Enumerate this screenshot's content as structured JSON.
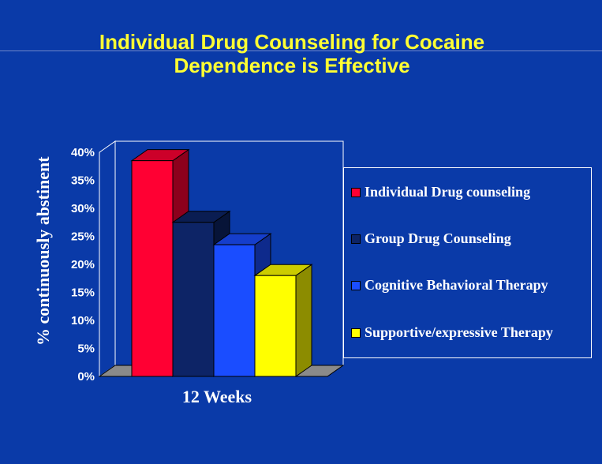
{
  "title": {
    "line1": "Individual Drug Counseling for Cocaine",
    "line2": "Dependence is Effective"
  },
  "colors": {
    "background": "#0a3aa8",
    "title": "#ffff33",
    "series": [
      "#ff0033",
      "#0d2466",
      "#1a4dff",
      "#ffff00"
    ]
  },
  "chart_data": {
    "type": "bar",
    "style": "3d",
    "categories": [
      "12  Weeks"
    ],
    "series": [
      {
        "name": "Individual Drug  counseling",
        "values": [
          38.5
        ]
      },
      {
        "name": "Group Drug Counseling",
        "values": [
          27.5
        ]
      },
      {
        "name": "Cognitive Behavioral Therapy",
        "values": [
          23.5
        ]
      },
      {
        "name": "Supportive/expressive Therapy",
        "values": [
          18
        ]
      }
    ],
    "ylabel": "% continuously abstinent",
    "xlabel": "",
    "ylim": [
      0,
      40
    ],
    "yticks": [
      "0%",
      "5%",
      "10%",
      "15%",
      "20%",
      "25%",
      "30%",
      "35%",
      "40%"
    ],
    "grid": false,
    "legend_position": "right"
  }
}
